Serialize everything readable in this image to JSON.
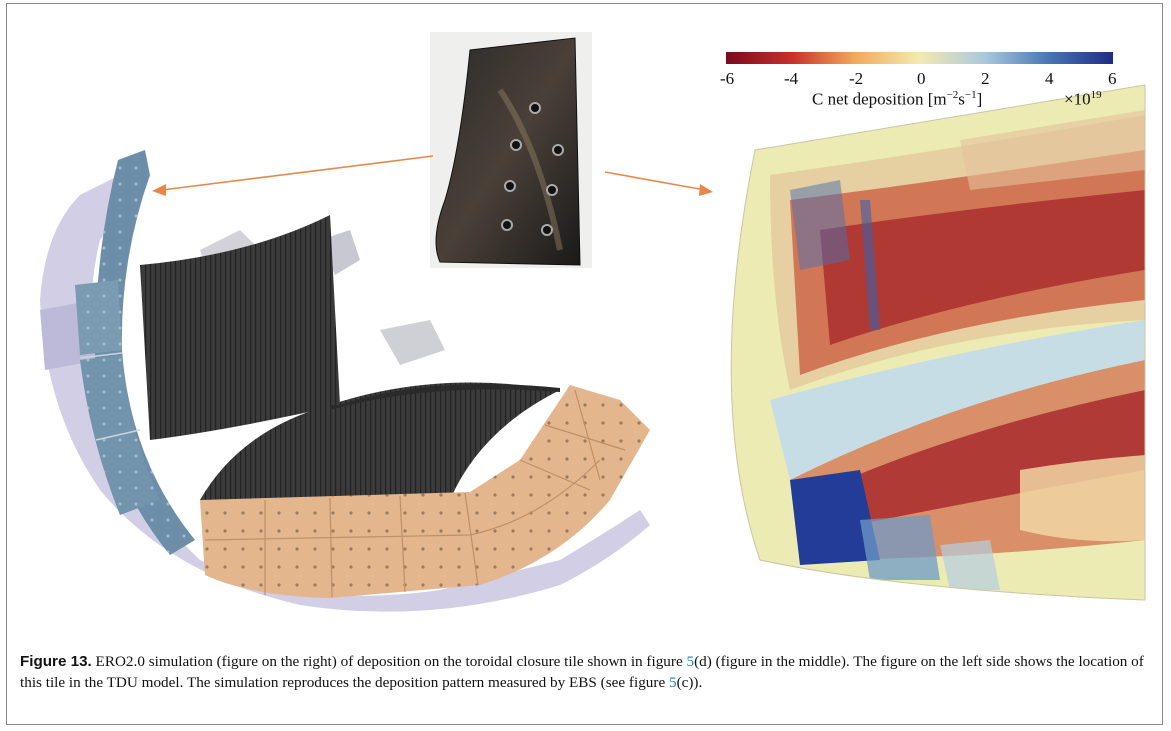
{
  "colorbar": {
    "ticks": [
      "-6",
      "-4",
      "-2",
      "0",
      "2",
      "4",
      "6"
    ],
    "label": "C net deposition [m",
    "label_exp": "−2",
    "label_mid": "s",
    "label_exp2": "−1",
    "label_end": "]",
    "multiplier_base": "×10",
    "multiplier_exp": "19",
    "colors": [
      "#7a0a1c",
      "#c9302c",
      "#f0a85a",
      "#f4eab0",
      "#a8c8dc",
      "#4a78b4",
      "#202b86"
    ]
  },
  "caption": {
    "label": "Figure 13.",
    "part1": " ERO2.0 simulation (figure on the right) of deposition on the toroidal closure tile shown in figure ",
    "ref1": "5",
    "part2": "(d) (figure in the middle). The figure on the left side shows the location of this tile in the TDU model. The simulation reproduces the deposition pattern measured by EBS (see figure ",
    "ref2": "5",
    "part3": "(c))."
  },
  "colors": {
    "tile_blue": "#6d8ea8",
    "tile_tan": "#e4b68e",
    "frame_gray": "#8a8a8a",
    "arrow": "#e8874a",
    "sim_base": "#ecebb4"
  }
}
